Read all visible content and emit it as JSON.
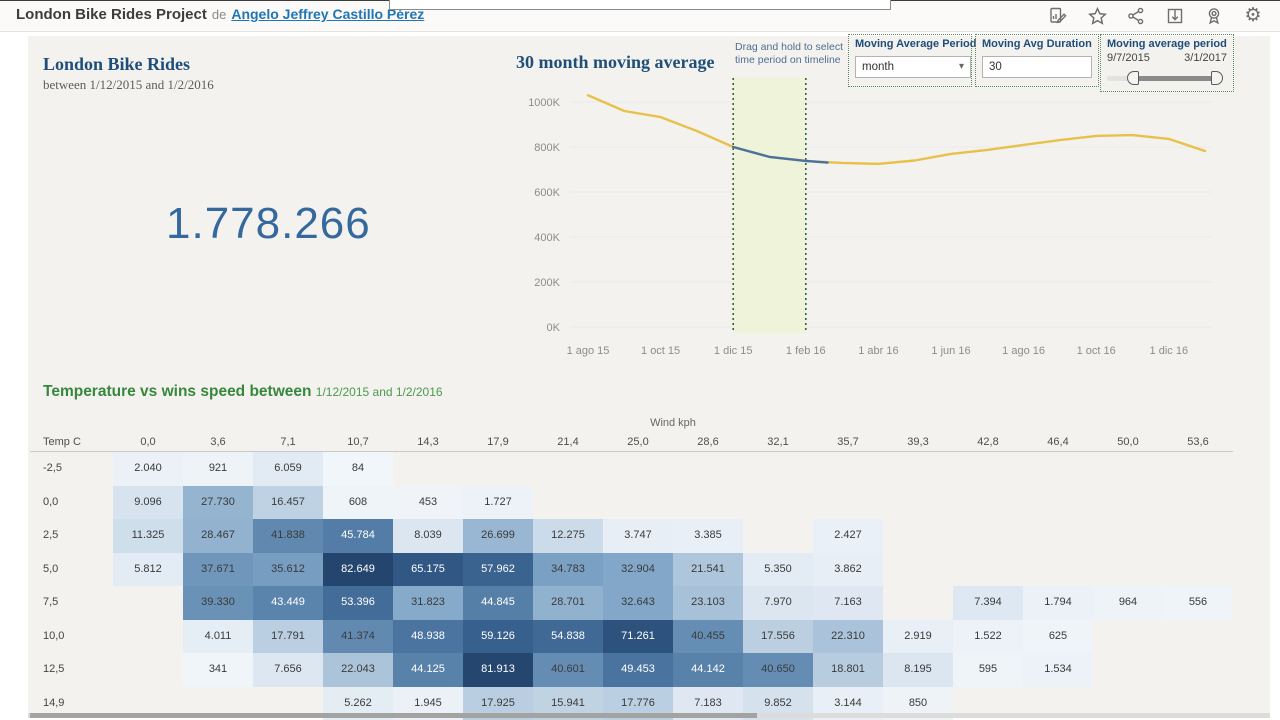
{
  "topbar": {
    "title": "London Bike Rides Project",
    "by_label": "de",
    "author": "Angelo Jeffrey Castillo Pérez",
    "icons": [
      "edit-viz",
      "favorite-star",
      "share",
      "download",
      "author-badge",
      "settings"
    ]
  },
  "kpi": {
    "title": "London Bike Rides",
    "subtitle": "between 1/12/2015 and 1/2/2016",
    "value": "1.778.266"
  },
  "controls": {
    "hint": "Drag and hold to select time period on timeline",
    "period": {
      "label": "Moving Average Period",
      "value": "month"
    },
    "duration": {
      "label": "Moving Avg Duration",
      "value": "30"
    },
    "range": {
      "label": "Moving average period",
      "start": "9/7/2015",
      "end": "3/1/2017"
    }
  },
  "chart_data": [
    {
      "type": "line",
      "title": "30 month moving average",
      "x_ticks": [
        "1 ago 15",
        "1 oct 15",
        "1 dic 15",
        "1 feb 16",
        "1 abr 16",
        "1 jun 16",
        "1 ago 16",
        "1 oct 16",
        "1 dic 16"
      ],
      "x_tick_month_indices": [
        0,
        2,
        4,
        6,
        8,
        10,
        12,
        14,
        16
      ],
      "y_ticks": [
        "0K",
        "200K",
        "400K",
        "600K",
        "800K",
        "1000K"
      ],
      "ylim_K": [
        0,
        1000
      ],
      "grid": "horizontal-faint",
      "legend": "none",
      "series": [
        {
          "name": "moving-average",
          "color": "#e8c14b",
          "x_month": [
            0,
            1,
            2,
            3,
            4,
            5,
            6,
            7,
            8,
            9,
            10,
            11,
            12,
            13,
            14,
            15,
            16,
            17
          ],
          "values_K": [
            1030,
            960,
            933,
            871,
            800,
            756,
            738,
            729,
            725,
            740,
            769,
            787,
            809,
            831,
            849,
            853,
            836,
            782
          ]
        },
        {
          "name": "selected-range",
          "color": "#4a72a0",
          "x_month": [
            4,
            5,
            6,
            6.6
          ],
          "values_K": [
            800,
            756,
            738,
            731
          ]
        }
      ],
      "selection_band": {
        "from": "1 dic 15",
        "to": "1 feb 16",
        "from_month": 4,
        "to_month": 6,
        "fill": "#eef3da",
        "border": "#2f6a30"
      }
    },
    {
      "type": "heatmap",
      "title": "Temperature vs wins speed between",
      "subtitle": "1/12/2015 and 1/2/2016",
      "xlabel": "Wind kph",
      "row_header": "Temp C",
      "columns": [
        "0,0",
        "3,6",
        "7,1",
        "10,7",
        "14,3",
        "17,9",
        "21,4",
        "25,0",
        "28,6",
        "32,1",
        "35,7",
        "39,3",
        "42,8",
        "46,4",
        "50,0",
        "53,6"
      ],
      "rows": [
        "-2,5",
        "0,0",
        "2,5",
        "5,0",
        "7,5",
        "10,0",
        "12,5",
        "14,9"
      ],
      "cells": [
        [
          "2.040",
          "921",
          "6.059",
          "84",
          "",
          "",
          "",
          "",
          "",
          "",
          "",
          "",
          "",
          "",
          "",
          ""
        ],
        [
          "9.096",
          "27.730",
          "16.457",
          "608",
          "453",
          "1.727",
          "",
          "",
          "",
          "",
          "",
          "",
          "",
          "",
          "",
          ""
        ],
        [
          "11.325",
          "28.467",
          "41.838",
          "45.784",
          "8.039",
          "26.699",
          "12.275",
          "3.747",
          "3.385",
          "",
          "2.427",
          "",
          "",
          "",
          "",
          ""
        ],
        [
          "5.812",
          "37.671",
          "35.612",
          "82.649",
          "65.175",
          "57.962",
          "34.783",
          "32.904",
          "21.541",
          "5.350",
          "3.862",
          "",
          "",
          "",
          "",
          ""
        ],
        [
          "",
          "39.330",
          "43.449",
          "53.396",
          "31.823",
          "44.845",
          "28.701",
          "32.643",
          "23.103",
          "7.970",
          "7.163",
          "",
          "7.394",
          "1.794",
          "964",
          "556"
        ],
        [
          "",
          "4.011",
          "17.791",
          "41.374",
          "48.938",
          "59.126",
          "54.838",
          "71.261",
          "40.455",
          "17.556",
          "22.310",
          "2.919",
          "1.522",
          "625",
          "",
          ""
        ],
        [
          "",
          "341",
          "7.656",
          "22.043",
          "44.125",
          "81.913",
          "40.601",
          "49.453",
          "44.142",
          "40.650",
          "18.801",
          "8.195",
          "595",
          "1.534",
          "",
          ""
        ],
        [
          "",
          "",
          "",
          "5.262",
          "1.945",
          "17.925",
          "15.941",
          "17.776",
          "7.183",
          "9.852",
          "3.144",
          "850",
          "",
          "",
          "",
          ""
        ]
      ],
      "color_scale": {
        "light": "#f2f6fa",
        "dark": "#24466e"
      },
      "max_value": 82649,
      "white_text_threshold": 43000
    }
  ]
}
